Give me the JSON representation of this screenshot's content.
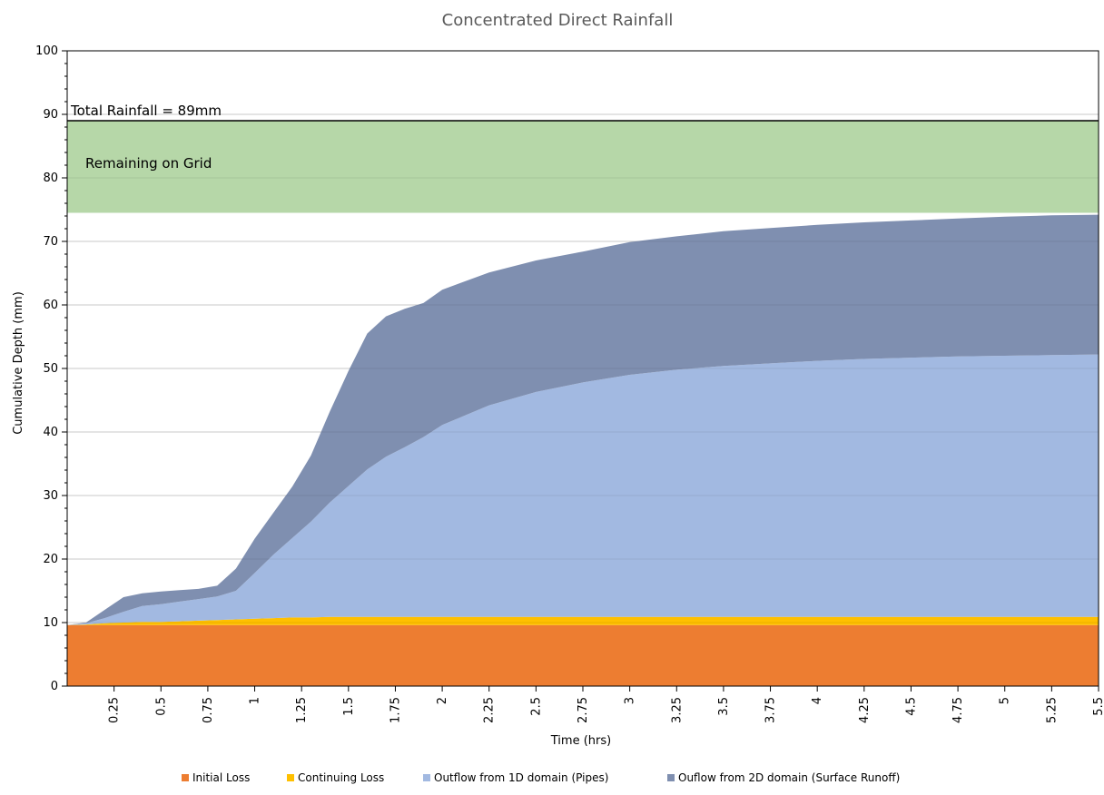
{
  "chart_data": {
    "type": "area",
    "title": "Concentrated Direct Rainfall",
    "xlabel": "Time (hrs)",
    "ylabel": "Cumulative Depth (mm)",
    "xlim": [
      0,
      5.5
    ],
    "ylim": [
      0,
      100
    ],
    "yticks": [
      0,
      10,
      20,
      30,
      40,
      50,
      60,
      70,
      80,
      90,
      100
    ],
    "xtick_labels": [
      "0.25",
      "0.5",
      "0.75",
      "1",
      "1.25",
      "1.5",
      "1.75",
      "2",
      "2.25",
      "2.5",
      "2.75",
      "3",
      "3.25",
      "3.5",
      "3.75",
      "4",
      "4.25",
      "4.5",
      "4.75",
      "5",
      "5.25",
      "5.5"
    ],
    "x": [
      0,
      0.1,
      0.2,
      0.3,
      0.4,
      0.5,
      0.6,
      0.7,
      0.8,
      0.9,
      1.0,
      1.1,
      1.2,
      1.3,
      1.4,
      1.5,
      1.6,
      1.7,
      1.8,
      1.9,
      2.0,
      2.25,
      2.5,
      2.75,
      3.0,
      3.25,
      3.5,
      3.75,
      4.0,
      4.25,
      4.5,
      4.75,
      5.0,
      5.25,
      5.5
    ],
    "series": [
      {
        "name": "Initial Loss",
        "color": "#ED7D31",
        "values": [
          9.6,
          9.6,
          9.6,
          9.6,
          9.6,
          9.6,
          9.6,
          9.6,
          9.6,
          9.6,
          9.6,
          9.6,
          9.6,
          9.6,
          9.6,
          9.6,
          9.6,
          9.6,
          9.6,
          9.6,
          9.6,
          9.6,
          9.6,
          9.6,
          9.6,
          9.6,
          9.6,
          9.6,
          9.6,
          9.6,
          9.6,
          9.6,
          9.6,
          9.6,
          9.6
        ]
      },
      {
        "name": "Continuing Loss",
        "color": "#FFC000",
        "values": [
          0,
          0.1,
          0.3,
          0.4,
          0.5,
          0.5,
          0.6,
          0.7,
          0.8,
          0.9,
          1.0,
          1.1,
          1.2,
          1.2,
          1.3,
          1.3,
          1.3,
          1.3,
          1.3,
          1.3,
          1.3,
          1.3,
          1.3,
          1.3,
          1.3,
          1.3,
          1.3,
          1.3,
          1.3,
          1.3,
          1.3,
          1.3,
          1.3,
          1.3,
          1.3
        ]
      },
      {
        "name": "Outflow from 1D domain (Pipes)",
        "color": "#A2B9E1",
        "values": [
          0,
          0.2,
          0.8,
          1.7,
          2.5,
          2.8,
          3.1,
          3.4,
          3.7,
          4.5,
          7.2,
          10.0,
          12.5,
          15.1,
          18.0,
          20.6,
          23.2,
          25.2,
          26.7,
          28.3,
          30.2,
          33.3,
          35.4,
          36.9,
          38.1,
          38.9,
          39.5,
          39.9,
          40.3,
          40.6,
          40.8,
          41.0,
          41.1,
          41.2,
          41.3
        ]
      },
      {
        "name": "Ouflow from 2D domain (Surface Runoff)",
        "color": "#7F8FB0",
        "values": [
          0,
          0.1,
          1.3,
          2.3,
          2.0,
          2.0,
          1.8,
          1.6,
          1.7,
          3.5,
          5.4,
          6.6,
          8.1,
          10.4,
          14.3,
          18.1,
          21.4,
          22.1,
          21.8,
          21.1,
          21.3,
          20.9,
          20.7,
          20.6,
          20.9,
          21.0,
          21.2,
          21.3,
          21.4,
          21.5,
          21.6,
          21.7,
          21.9,
          22.0,
          22.0
        ]
      }
    ],
    "bands": {
      "remaining_on_grid": {
        "label": "Remaining on Grid",
        "from": 74.5,
        "to": 89,
        "color": "#B6D7A8"
      }
    },
    "reference_line": {
      "label": "Total Rainfall = 89mm",
      "y": 89
    },
    "legend": {
      "position": "bottom",
      "entries": [
        "Initial Loss",
        "Continuing Loss",
        "Outflow from 1D domain (Pipes)",
        "Ouflow from 2D domain (Surface Runoff)"
      ]
    },
    "grid": true
  }
}
